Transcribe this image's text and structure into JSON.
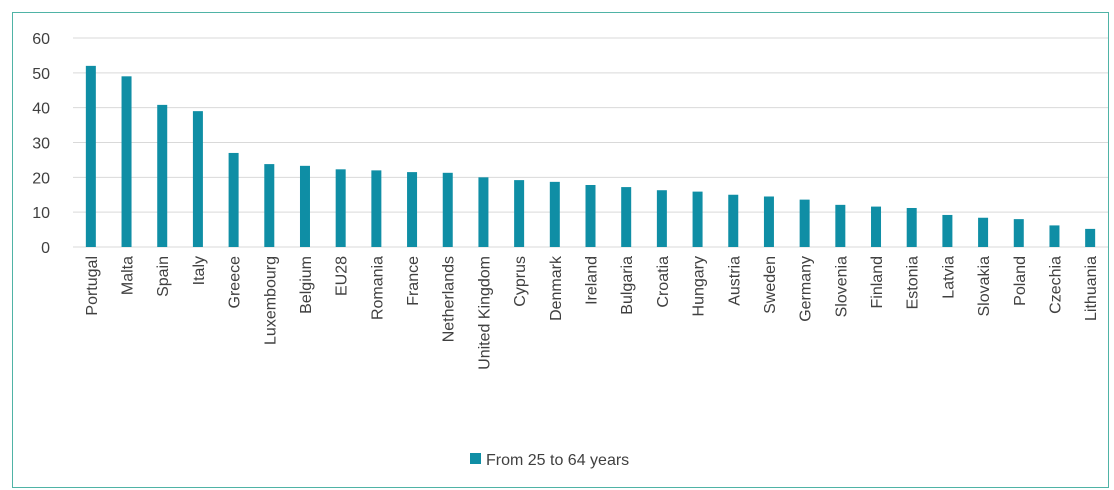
{
  "chart_data": {
    "type": "bar",
    "categories": [
      "Portugal",
      "Malta",
      "Spain",
      "Italy",
      "Greece",
      "Luxembourg",
      "Belgium",
      "EU28",
      "Romania",
      "France",
      "Netherlands",
      "United Kingdom",
      "Cyprus",
      "Denmark",
      "Ireland",
      "Bulgaria",
      "Croatia",
      "Hungary",
      "Austria",
      "Sweden",
      "Germany",
      "Slovenia",
      "Finland",
      "Estonia",
      "Latvia",
      "Slovakia",
      "Poland",
      "Czechia",
      "Lithuania"
    ],
    "series": [
      {
        "name": "From 25 to 64 years",
        "color": "#0f8ea5",
        "values": [
          52,
          49,
          40.8,
          39,
          27,
          23.8,
          23.3,
          22.3,
          22,
          21.5,
          21.3,
          20,
          19.2,
          18.7,
          17.8,
          17.2,
          16.3,
          15.9,
          15,
          14.5,
          13.6,
          12.1,
          11.6,
          11.2,
          9.2,
          8.4,
          8,
          6.2,
          5.2
        ]
      }
    ],
    "ylim": [
      0,
      60
    ],
    "yticks": [
      "0",
      "10",
      "20",
      "30",
      "40",
      "50",
      "60"
    ],
    "grid": true,
    "legend_position": "bottom",
    "gridline_color": "#d9d9d9",
    "border_color": "#4fb3a6"
  }
}
